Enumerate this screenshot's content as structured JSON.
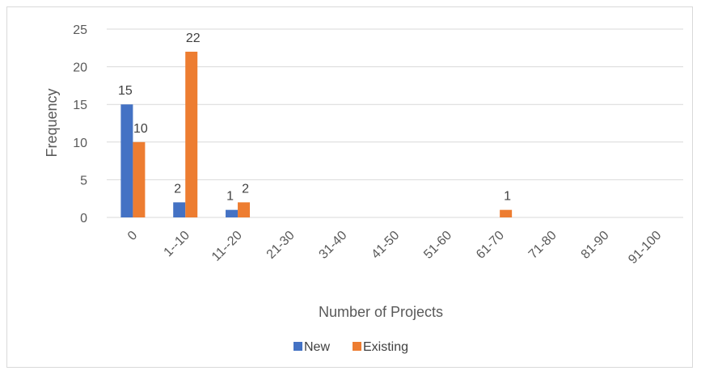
{
  "chart_data": {
    "type": "bar",
    "title": "",
    "xlabel": "Number of Projects",
    "ylabel": "Frequency",
    "categories": [
      "0",
      "1--10",
      "11--20",
      "21-30",
      "31-40",
      "41-50",
      "51-60",
      "61-70",
      "71-80",
      "81-90",
      "91-100"
    ],
    "series": [
      {
        "name": "New",
        "color": "#4472c4",
        "values": [
          15,
          2,
          1,
          0,
          0,
          0,
          0,
          0,
          0,
          0,
          0
        ],
        "labels": [
          "15",
          "2",
          "1",
          "",
          "",
          "",
          "",
          "",
          "",
          "",
          ""
        ]
      },
      {
        "name": "Existing",
        "color": "#ed7d31",
        "values": [
          10,
          22,
          2,
          0,
          0,
          0,
          0,
          1,
          0,
          0,
          0
        ],
        "labels": [
          "10",
          "22",
          "2",
          "",
          "",
          "",
          "",
          "1",
          "",
          "",
          ""
        ]
      }
    ],
    "ylim": [
      0,
      25
    ],
    "yticks": [
      "0",
      "5",
      "10",
      "15",
      "20",
      "25"
    ],
    "grid": true,
    "legend_position": "bottom"
  }
}
